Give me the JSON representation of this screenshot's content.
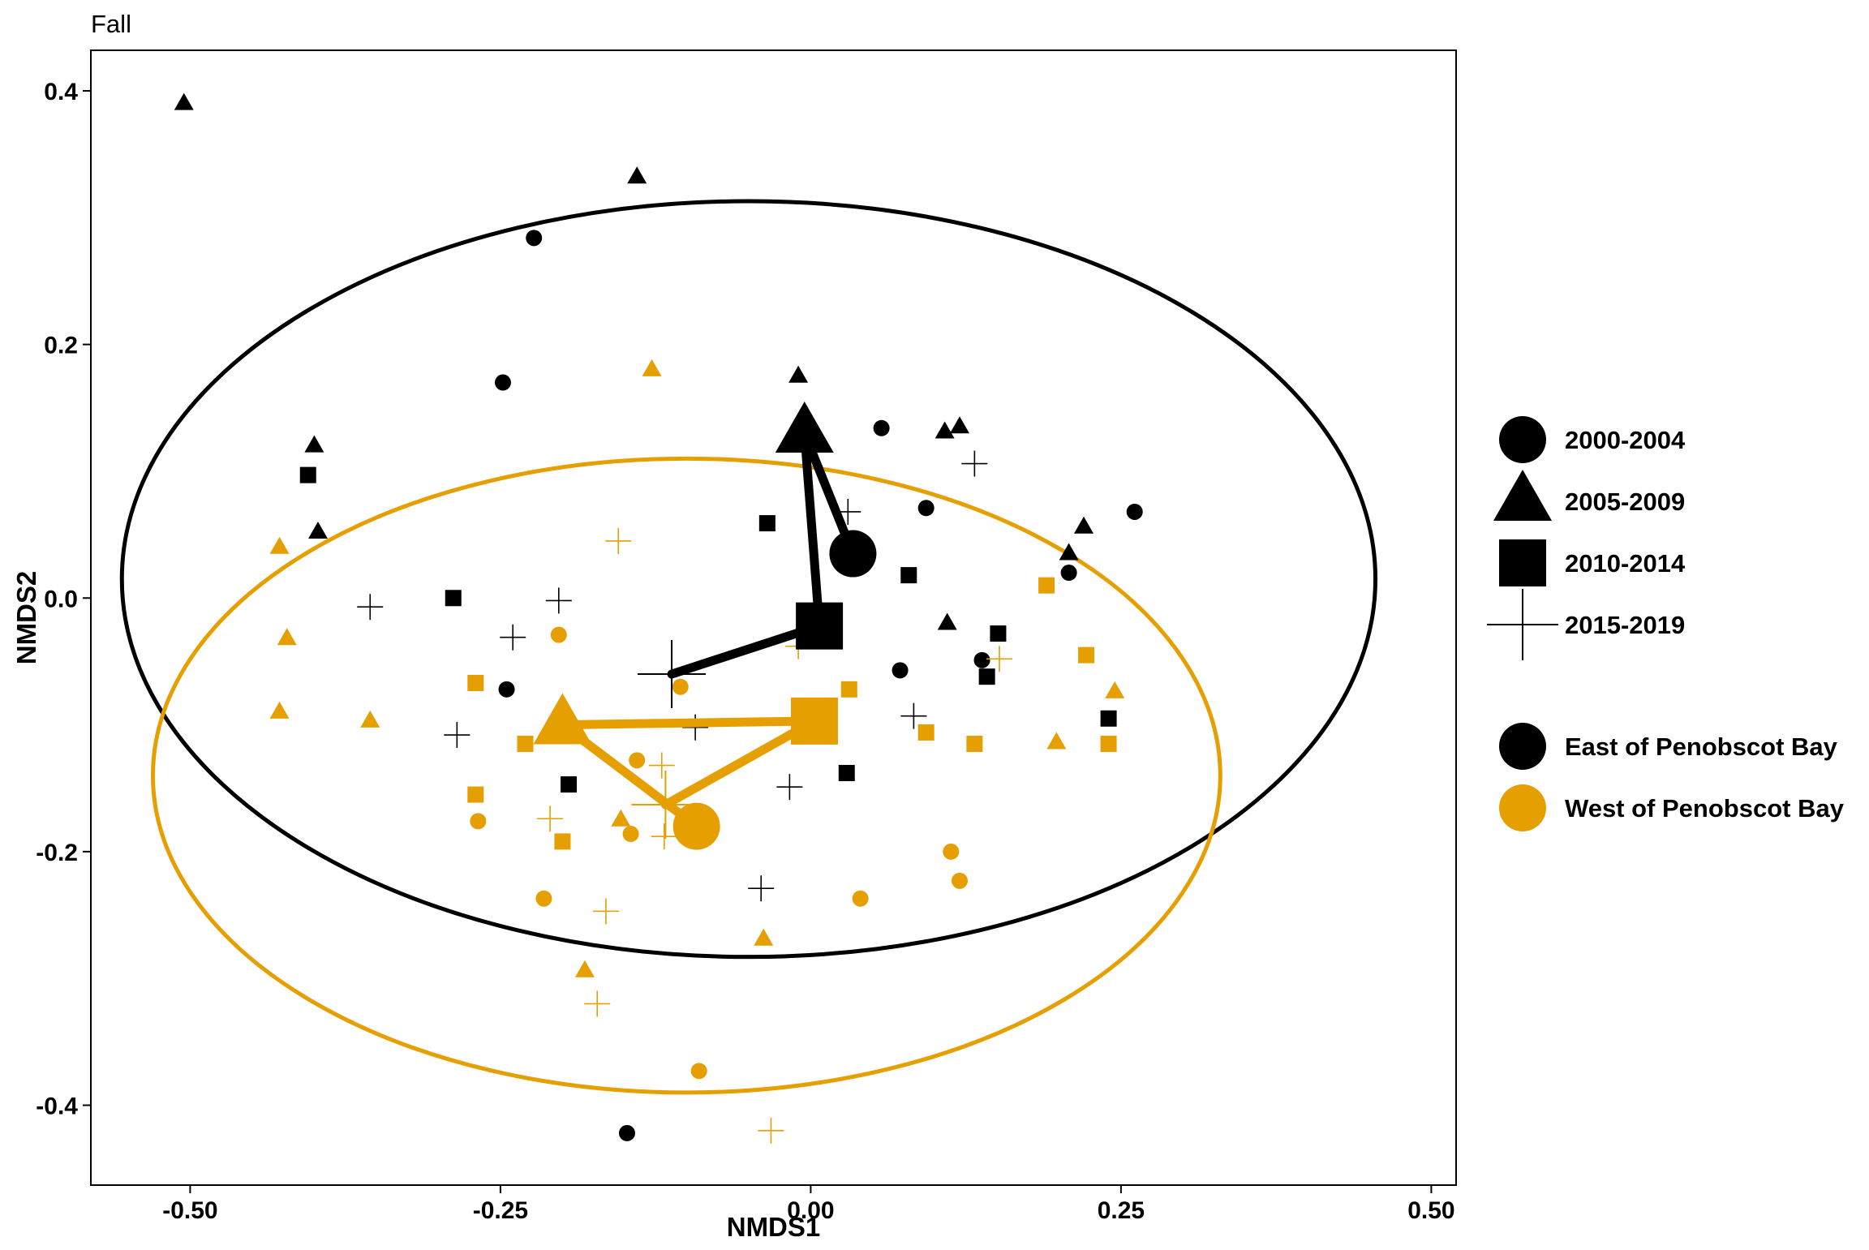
{
  "chart_data": {
    "type": "scatter",
    "title": "Fall",
    "xlabel": "NMDS1",
    "ylabel": "NMDS2",
    "xlim": [
      -0.58,
      0.52
    ],
    "ylim": [
      -0.463,
      0.432
    ],
    "x_ticks": [
      -0.5,
      -0.25,
      0.0,
      0.25,
      0.5
    ],
    "x_tick_labels": [
      "-0.50",
      "-0.25",
      "0.00",
      "0.25",
      "0.50"
    ],
    "y_ticks": [
      -0.4,
      -0.2,
      0.0,
      0.2,
      0.4
    ],
    "y_tick_labels": [
      "-0.4",
      "-0.2",
      "0.0",
      "0.2",
      "0.4"
    ],
    "grid": false,
    "legend_position": "right",
    "colors": {
      "East of Penobscot Bay": "#000000",
      "West of Penobscot Bay": "#E69F00"
    },
    "shape_legend": [
      {
        "label": "2000-2004",
        "shape": "circle"
      },
      {
        "label": "2005-2009",
        "shape": "triangle"
      },
      {
        "label": "2010-2014",
        "shape": "square"
      },
      {
        "label": "2015-2019",
        "shape": "plus"
      }
    ],
    "color_legend": [
      {
        "label": "East of Penobscot Bay",
        "color": "#000000"
      },
      {
        "label": "West of Penobscot Bay",
        "color": "#E69F00"
      }
    ],
    "points": [
      {
        "group": "East of Penobscot Bay",
        "period": "2005-2009",
        "x": -0.505,
        "y": 0.39
      },
      {
        "group": "East of Penobscot Bay",
        "period": "2005-2009",
        "x": -0.14,
        "y": 0.332
      },
      {
        "group": "East of Penobscot Bay",
        "period": "2000-2004",
        "x": -0.223,
        "y": 0.284
      },
      {
        "group": "East of Penobscot Bay",
        "period": "2000-2004",
        "x": -0.248,
        "y": 0.17
      },
      {
        "group": "East of Penobscot Bay",
        "period": "2005-2009",
        "x": -0.4,
        "y": 0.12
      },
      {
        "group": "East of Penobscot Bay",
        "period": "2010-2014",
        "x": -0.405,
        "y": 0.097
      },
      {
        "group": "East of Penobscot Bay",
        "period": "2005-2009",
        "x": -0.397,
        "y": 0.052
      },
      {
        "group": "East of Penobscot Bay",
        "period": "2005-2009",
        "x": -0.01,
        "y": 0.175
      },
      {
        "group": "East of Penobscot Bay",
        "period": "2000-2004",
        "x": 0.057,
        "y": 0.134
      },
      {
        "group": "East of Penobscot Bay",
        "period": "2005-2009",
        "x": 0.108,
        "y": 0.131
      },
      {
        "group": "East of Penobscot Bay",
        "period": "2005-2009",
        "x": 0.12,
        "y": 0.135
      },
      {
        "group": "East of Penobscot Bay",
        "period": "2015-2019",
        "x": 0.132,
        "y": 0.106
      },
      {
        "group": "East of Penobscot Bay",
        "period": "2000-2004",
        "x": 0.093,
        "y": 0.071
      },
      {
        "group": "East of Penobscot Bay",
        "period": "2015-2019",
        "x": 0.03,
        "y": 0.068
      },
      {
        "group": "East of Penobscot Bay",
        "period": "2010-2014",
        "x": -0.035,
        "y": 0.059
      },
      {
        "group": "East of Penobscot Bay",
        "period": "2005-2009",
        "x": 0.22,
        "y": 0.056
      },
      {
        "group": "East of Penobscot Bay",
        "period": "2000-2004",
        "x": 0.261,
        "y": 0.068
      },
      {
        "group": "East of Penobscot Bay",
        "period": "2005-2009",
        "x": 0.208,
        "y": 0.035
      },
      {
        "group": "East of Penobscot Bay",
        "period": "2000-2004",
        "x": 0.208,
        "y": 0.02
      },
      {
        "group": "East of Penobscot Bay",
        "period": "2010-2014",
        "x": 0.079,
        "y": 0.018
      },
      {
        "group": "East of Penobscot Bay",
        "period": "2010-2014",
        "x": -0.288,
        "y": 0.0
      },
      {
        "group": "East of Penobscot Bay",
        "period": "2015-2019",
        "x": -0.203,
        "y": -0.002
      },
      {
        "group": "East of Penobscot Bay",
        "period": "2015-2019",
        "x": -0.355,
        "y": -0.007
      },
      {
        "group": "East of Penobscot Bay",
        "period": "2015-2019",
        "x": -0.24,
        "y": -0.031
      },
      {
        "group": "East of Penobscot Bay",
        "period": "2005-2009",
        "x": 0.11,
        "y": -0.02
      },
      {
        "group": "East of Penobscot Bay",
        "period": "2010-2014",
        "x": 0.151,
        "y": -0.028
      },
      {
        "group": "East of Penobscot Bay",
        "period": "2000-2004",
        "x": 0.138,
        "y": -0.049
      },
      {
        "group": "East of Penobscot Bay",
        "period": "2010-2014",
        "x": 0.142,
        "y": -0.062
      },
      {
        "group": "East of Penobscot Bay",
        "period": "2000-2004",
        "x": 0.072,
        "y": -0.057
      },
      {
        "group": "East of Penobscot Bay",
        "period": "2000-2004",
        "x": -0.245,
        "y": -0.072
      },
      {
        "group": "East of Penobscot Bay",
        "period": "2015-2019",
        "x": 0.083,
        "y": -0.093
      },
      {
        "group": "East of Penobscot Bay",
        "period": "2015-2019",
        "x": -0.093,
        "y": -0.102
      },
      {
        "group": "East of Penobscot Bay",
        "period": "2010-2014",
        "x": 0.24,
        "y": -0.095
      },
      {
        "group": "East of Penobscot Bay",
        "period": "2015-2019",
        "x": -0.285,
        "y": -0.108
      },
      {
        "group": "East of Penobscot Bay",
        "period": "2010-2014",
        "x": 0.029,
        "y": -0.138
      },
      {
        "group": "East of Penobscot Bay",
        "period": "2010-2014",
        "x": -0.195,
        "y": -0.147
      },
      {
        "group": "East of Penobscot Bay",
        "period": "2015-2019",
        "x": -0.017,
        "y": -0.149
      },
      {
        "group": "East of Penobscot Bay",
        "period": "2015-2019",
        "x": -0.04,
        "y": -0.229
      },
      {
        "group": "East of Penobscot Bay",
        "period": "2000-2004",
        "x": -0.148,
        "y": -0.422
      },
      {
        "group": "West of Penobscot Bay",
        "period": "2005-2009",
        "x": -0.128,
        "y": 0.18
      },
      {
        "group": "West of Penobscot Bay",
        "period": "2005-2009",
        "x": -0.428,
        "y": 0.04
      },
      {
        "group": "West of Penobscot Bay",
        "period": "2015-2019",
        "x": -0.155,
        "y": 0.045
      },
      {
        "group": "West of Penobscot Bay",
        "period": "2005-2009",
        "x": -0.422,
        "y": -0.032
      },
      {
        "group": "West of Penobscot Bay",
        "period": "2000-2004",
        "x": -0.203,
        "y": -0.029
      },
      {
        "group": "West of Penobscot Bay",
        "period": "2015-2019",
        "x": -0.01,
        "y": -0.038
      },
      {
        "group": "West of Penobscot Bay",
        "period": "2010-2014",
        "x": 0.19,
        "y": 0.01
      },
      {
        "group": "West of Penobscot Bay",
        "period": "2010-2014",
        "x": 0.222,
        "y": -0.045
      },
      {
        "group": "West of Penobscot Bay",
        "period": "2015-2019",
        "x": 0.152,
        "y": -0.048
      },
      {
        "group": "West of Penobscot Bay",
        "period": "2010-2014",
        "x": -0.27,
        "y": -0.067
      },
      {
        "group": "West of Penobscot Bay",
        "period": "2000-2004",
        "x": -0.105,
        "y": -0.07
      },
      {
        "group": "West of Penobscot Bay",
        "period": "2010-2014",
        "x": 0.031,
        "y": -0.072
      },
      {
        "group": "West of Penobscot Bay",
        "period": "2005-2009",
        "x": 0.245,
        "y": -0.074
      },
      {
        "group": "West of Penobscot Bay",
        "period": "2005-2009",
        "x": -0.428,
        "y": -0.09
      },
      {
        "group": "West of Penobscot Bay",
        "period": "2005-2009",
        "x": -0.355,
        "y": -0.097
      },
      {
        "group": "West of Penobscot Bay",
        "period": "2010-2014",
        "x": 0.093,
        "y": -0.106
      },
      {
        "group": "West of Penobscot Bay",
        "period": "2010-2014",
        "x": -0.23,
        "y": -0.115
      },
      {
        "group": "West of Penobscot Bay",
        "period": "2010-2014",
        "x": 0.132,
        "y": -0.115
      },
      {
        "group": "West of Penobscot Bay",
        "period": "2005-2009",
        "x": 0.198,
        "y": -0.114
      },
      {
        "group": "West of Penobscot Bay",
        "period": "2010-2014",
        "x": 0.24,
        "y": -0.115
      },
      {
        "group": "West of Penobscot Bay",
        "period": "2000-2004",
        "x": -0.14,
        "y": -0.128
      },
      {
        "group": "West of Penobscot Bay",
        "period": "2015-2019",
        "x": -0.12,
        "y": -0.132
      },
      {
        "group": "West of Penobscot Bay",
        "period": "2010-2014",
        "x": -0.27,
        "y": -0.155
      },
      {
        "group": "West of Penobscot Bay",
        "period": "2015-2019",
        "x": -0.21,
        "y": -0.174
      },
      {
        "group": "West of Penobscot Bay",
        "period": "2000-2004",
        "x": -0.268,
        "y": -0.176
      },
      {
        "group": "West of Penobscot Bay",
        "period": "2005-2009",
        "x": -0.153,
        "y": -0.175
      },
      {
        "group": "West of Penobscot Bay",
        "period": "2000-2004",
        "x": -0.145,
        "y": -0.186
      },
      {
        "group": "West of Penobscot Bay",
        "period": "2010-2014",
        "x": -0.2,
        "y": -0.192
      },
      {
        "group": "West of Penobscot Bay",
        "period": "2015-2019",
        "x": -0.118,
        "y": -0.188
      },
      {
        "group": "West of Penobscot Bay",
        "period": "2000-2004",
        "x": 0.113,
        "y": -0.2
      },
      {
        "group": "West of Penobscot Bay",
        "period": "2000-2004",
        "x": 0.12,
        "y": -0.223
      },
      {
        "group": "West of Penobscot Bay",
        "period": "2000-2004",
        "x": -0.215,
        "y": -0.237
      },
      {
        "group": "West of Penobscot Bay",
        "period": "2000-2004",
        "x": 0.04,
        "y": -0.237
      },
      {
        "group": "West of Penobscot Bay",
        "period": "2015-2019",
        "x": -0.165,
        "y": -0.247
      },
      {
        "group": "West of Penobscot Bay",
        "period": "2005-2009",
        "x": -0.038,
        "y": -0.269
      },
      {
        "group": "West of Penobscot Bay",
        "period": "2005-2009",
        "x": -0.182,
        "y": -0.294
      },
      {
        "group": "West of Penobscot Bay",
        "period": "2015-2019",
        "x": -0.172,
        "y": -0.32
      },
      {
        "group": "West of Penobscot Bay",
        "period": "2000-2004",
        "x": -0.09,
        "y": -0.373
      },
      {
        "group": "West of Penobscot Bay",
        "period": "2015-2019",
        "x": -0.032,
        "y": -0.42
      }
    ],
    "centroids": [
      {
        "group": "East of Penobscot Bay",
        "period": "2000-2004",
        "x": 0.034,
        "y": 0.035
      },
      {
        "group": "East of Penobscot Bay",
        "period": "2005-2009",
        "x": -0.005,
        "y": 0.13
      },
      {
        "group": "East of Penobscot Bay",
        "period": "2010-2014",
        "x": 0.007,
        "y": -0.022
      },
      {
        "group": "East of Penobscot Bay",
        "period": "2015-2019",
        "x": -0.112,
        "y": -0.06
      },
      {
        "group": "West of Penobscot Bay",
        "period": "2000-2004",
        "x": -0.092,
        "y": -0.18
      },
      {
        "group": "West of Penobscot Bay",
        "period": "2005-2009",
        "x": -0.2,
        "y": -0.1
      },
      {
        "group": "West of Penobscot Bay",
        "period": "2010-2014",
        "x": 0.003,
        "y": -0.097
      },
      {
        "group": "West of Penobscot Bay",
        "period": "2015-2019",
        "x": -0.117,
        "y": -0.163
      }
    ],
    "trajectories": [
      {
        "group": "East of Penobscot Bay",
        "order": [
          "2000-2004",
          "2005-2009",
          "2010-2014",
          "2015-2019"
        ]
      },
      {
        "group": "West of Penobscot Bay",
        "order": [
          "2000-2004",
          "2005-2009",
          "2010-2014",
          "2015-2019"
        ]
      }
    ],
    "ellipses": [
      {
        "group": "East of Penobscot Bay",
        "cx": -0.05,
        "cy": 0.015,
        "rx": 0.505,
        "ry": 0.298
      },
      {
        "group": "West of Penobscot Bay",
        "cx": -0.1,
        "cy": -0.14,
        "rx": 0.43,
        "ry": 0.25
      }
    ]
  }
}
